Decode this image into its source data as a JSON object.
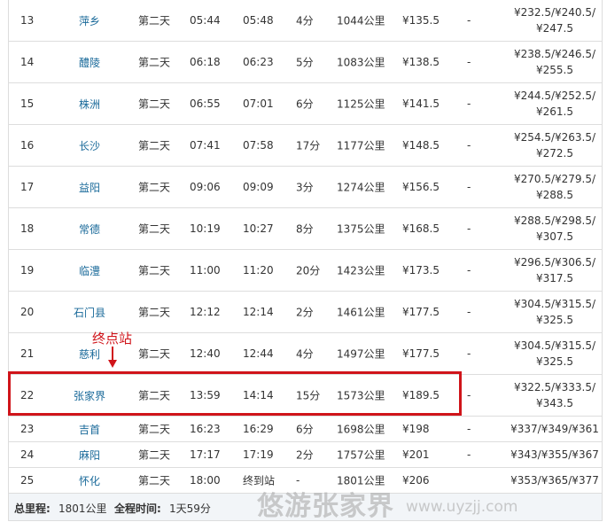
{
  "rows": [
    [
      "13",
      "萍乡",
      "第二天",
      "05:44",
      "05:48",
      "4分",
      "1044公里",
      "¥135.5",
      "-",
      "¥232.5/¥240.5/\n¥247.5"
    ],
    [
      "14",
      "醴陵",
      "第二天",
      "06:18",
      "06:23",
      "5分",
      "1083公里",
      "¥138.5",
      "-",
      "¥238.5/¥246.5/\n¥255.5"
    ],
    [
      "15",
      "株洲",
      "第二天",
      "06:55",
      "07:01",
      "6分",
      "1125公里",
      "¥141.5",
      "-",
      "¥244.5/¥252.5/\n¥261.5"
    ],
    [
      "16",
      "长沙",
      "第二天",
      "07:41",
      "07:58",
      "17分",
      "1177公里",
      "¥148.5",
      "-",
      "¥254.5/¥263.5/\n¥272.5"
    ],
    [
      "17",
      "益阳",
      "第二天",
      "09:06",
      "09:09",
      "3分",
      "1274公里",
      "¥156.5",
      "-",
      "¥270.5/¥279.5/\n¥288.5"
    ],
    [
      "18",
      "常德",
      "第二天",
      "10:19",
      "10:27",
      "8分",
      "1375公里",
      "¥168.5",
      "-",
      "¥288.5/¥298.5/\n¥307.5"
    ],
    [
      "19",
      "临澧",
      "第二天",
      "11:00",
      "11:20",
      "20分",
      "1423公里",
      "¥173.5",
      "-",
      "¥296.5/¥306.5/\n¥317.5"
    ],
    [
      "20",
      "石门县",
      "第二天",
      "12:12",
      "12:14",
      "2分",
      "1461公里",
      "¥177.5",
      "-",
      "¥304.5/¥315.5/\n¥325.5"
    ],
    [
      "21",
      "慈利",
      "第二天",
      "12:40",
      "12:44",
      "4分",
      "1497公里",
      "¥177.5",
      "-",
      "¥304.5/¥315.5/\n¥325.5"
    ],
    [
      "22",
      "张家界",
      "第二天",
      "13:59",
      "14:14",
      "15分",
      "1573公里",
      "¥189.5",
      "-",
      "¥322.5/¥333.5/\n¥343.5"
    ],
    [
      "23",
      "吉首",
      "第二天",
      "16:23",
      "16:29",
      "6分",
      "1698公里",
      "¥198",
      "-",
      "¥337/¥349/¥361"
    ],
    [
      "24",
      "麻阳",
      "第二天",
      "17:17",
      "17:19",
      "2分",
      "1757公里",
      "¥201",
      "-",
      "¥343/¥355/¥367"
    ],
    [
      "25",
      "怀化",
      "第二天",
      "18:00",
      "终到站",
      "-",
      "1801公里",
      "¥206",
      "",
      "¥353/¥365/¥377"
    ]
  ],
  "footer": {
    "distance_label": "总里程:",
    "distance": "1801公里",
    "time_label": "全程时间:",
    "time": "1天59分"
  },
  "annotation": {
    "text": "终点站",
    "color": "#d0141a"
  },
  "watermark": {
    "name": "悠游张家界",
    "url": "www.uyzjj.com"
  }
}
